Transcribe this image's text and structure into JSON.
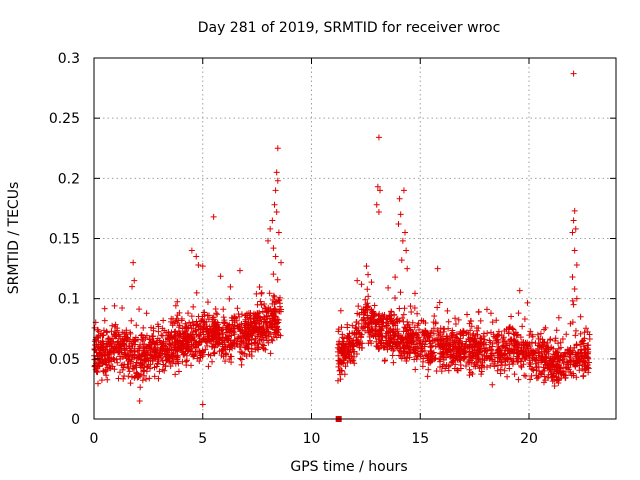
{
  "chart_data": {
    "type": "scatter",
    "title": "Day 281 of 2019, SRMTID for receiver wroc",
    "xlabel": "GPS time / hours",
    "ylabel": "SRMTID / TECUs",
    "xlim": [
      0,
      24
    ],
    "ylim": [
      0,
      0.3
    ],
    "x_ticks": [
      0,
      5,
      10,
      15,
      20
    ],
    "x_tick_labels": [
      "0",
      "5",
      "10",
      "15",
      "20"
    ],
    "y_ticks": [
      0,
      0.05,
      0.1,
      0.15,
      0.2,
      0.25,
      0.3
    ],
    "y_tick_labels": [
      "0",
      "0.05",
      "0.1",
      "0.15",
      "0.2",
      "0.25",
      "0.3"
    ],
    "grid": true,
    "marker": "plus",
    "color": "#e00000",
    "series": [
      {
        "name": "SRMTID",
        "segments": [
          {
            "t_start": 0.0,
            "t_end": 8.6,
            "density_per_hour": 150,
            "baseline": [
              [
                0,
                0.052
              ],
              [
                1,
                0.058
              ],
              [
                2,
                0.05
              ],
              [
                3,
                0.055
              ],
              [
                4,
                0.065
              ],
              [
                5,
                0.068
              ],
              [
                6,
                0.07
              ],
              [
                7,
                0.07
              ],
              [
                8,
                0.078
              ],
              [
                8.6,
                0.085
              ]
            ],
            "spread": 0.014
          },
          {
            "t_start": 11.2,
            "t_end": 22.8,
            "density_per_hour": 135,
            "baseline": [
              [
                11.2,
                0.05
              ],
              [
                12,
                0.065
              ],
              [
                12.5,
                0.085
              ],
              [
                13,
                0.075
              ],
              [
                14,
                0.068
              ],
              [
                15,
                0.062
              ],
              [
                16,
                0.06
              ],
              [
                17,
                0.058
              ],
              [
                18,
                0.055
              ],
              [
                19,
                0.058
              ],
              [
                20,
                0.055
              ],
              [
                21,
                0.045
              ],
              [
                22,
                0.05
              ],
              [
                22.8,
                0.052
              ]
            ],
            "spread": 0.013
          }
        ],
        "outliers": [
          {
            "x": 8.45,
            "y": 0.225
          },
          {
            "x": 8.4,
            "y": 0.205
          },
          {
            "x": 8.45,
            "y": 0.198
          },
          {
            "x": 8.35,
            "y": 0.19
          },
          {
            "x": 8.3,
            "y": 0.178
          },
          {
            "x": 8.4,
            "y": 0.172
          },
          {
            "x": 8.2,
            "y": 0.165
          },
          {
            "x": 8.1,
            "y": 0.158
          },
          {
            "x": 8.5,
            "y": 0.155
          },
          {
            "x": 8.0,
            "y": 0.148
          },
          {
            "x": 8.25,
            "y": 0.142
          },
          {
            "x": 8.35,
            "y": 0.135
          },
          {
            "x": 8.6,
            "y": 0.13
          },
          {
            "x": 5.5,
            "y": 0.168
          },
          {
            "x": 4.5,
            "y": 0.14
          },
          {
            "x": 4.7,
            "y": 0.135
          },
          {
            "x": 4.8,
            "y": 0.128
          },
          {
            "x": 5.0,
            "y": 0.127
          },
          {
            "x": 1.8,
            "y": 0.13
          },
          {
            "x": 1.85,
            "y": 0.115
          },
          {
            "x": 1.75,
            "y": 0.11
          },
          {
            "x": 5.0,
            "y": 0.012
          },
          {
            "x": 2.1,
            "y": 0.015
          },
          {
            "x": 13.1,
            "y": 0.234
          },
          {
            "x": 13.05,
            "y": 0.193
          },
          {
            "x": 13.15,
            "y": 0.19
          },
          {
            "x": 13.0,
            "y": 0.178
          },
          {
            "x": 13.1,
            "y": 0.172
          },
          {
            "x": 14.25,
            "y": 0.19
          },
          {
            "x": 14.05,
            "y": 0.183
          },
          {
            "x": 14.1,
            "y": 0.17
          },
          {
            "x": 14.0,
            "y": 0.162
          },
          {
            "x": 14.3,
            "y": 0.155
          },
          {
            "x": 14.2,
            "y": 0.148
          },
          {
            "x": 14.35,
            "y": 0.14
          },
          {
            "x": 14.15,
            "y": 0.132
          },
          {
            "x": 14.4,
            "y": 0.125
          },
          {
            "x": 12.1,
            "y": 0.115
          },
          {
            "x": 12.3,
            "y": 0.112
          },
          {
            "x": 12.6,
            "y": 0.12
          },
          {
            "x": 15.8,
            "y": 0.125
          },
          {
            "x": 22.05,
            "y": 0.287
          },
          {
            "x": 22.1,
            "y": 0.173
          },
          {
            "x": 22.05,
            "y": 0.165
          },
          {
            "x": 22.15,
            "y": 0.158
          },
          {
            "x": 22.0,
            "y": 0.155
          },
          {
            "x": 22.1,
            "y": 0.14
          },
          {
            "x": 22.2,
            "y": 0.128
          },
          {
            "x": 22.0,
            "y": 0.118
          },
          {
            "x": 22.1,
            "y": 0.108
          },
          {
            "x": 22.2,
            "y": 0.1
          },
          {
            "x": 22.05,
            "y": 0.095
          }
        ]
      }
    ],
    "special_points": [
      {
        "x": 11.25,
        "y": 0.0,
        "marker": "square"
      }
    ]
  }
}
